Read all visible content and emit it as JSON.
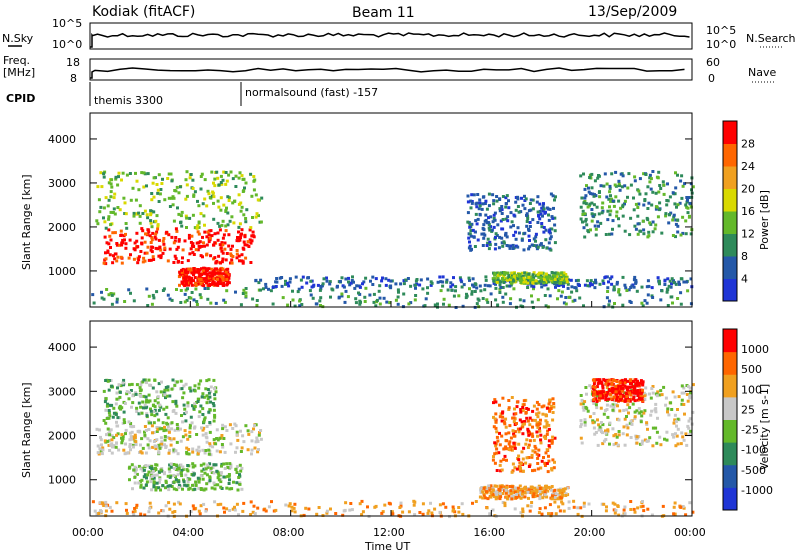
{
  "header": {
    "radar": "Kodiak (fitACF)",
    "beam": "Beam 11",
    "date": "13/Sep/2009"
  },
  "top_panel": {
    "nsky_label": "N.Sky",
    "nsearch_label": "N.Search",
    "left_ticks": [
      "10^5",
      "10^0"
    ],
    "right_ticks": [
      "10^5",
      "10^0"
    ]
  },
  "freq_panel": {
    "freq_label_1": "Freq.",
    "freq_label_2": "[MHz]",
    "nave_label": "Nave",
    "left_ticks": [
      "18",
      "8"
    ],
    "right_ticks": [
      "60",
      "0"
    ]
  },
  "cpid": {
    "label": "CPID",
    "programs": [
      {
        "name": "themis 3300",
        "start_hour": 0.0
      },
      {
        "name": "normalsound (fast) -157",
        "start_hour": 6.0
      }
    ]
  },
  "colors": {
    "power": [
      "#1f35d6",
      "#2458a8",
      "#2e8a5a",
      "#63b82a",
      "#d9d900",
      "#f0a020",
      "#ff6600",
      "#ff0000"
    ],
    "velocity": [
      "#1f35d6",
      "#2458a8",
      "#2e8a5a",
      "#63b82a",
      "#c8c8c8",
      "#f0a020",
      "#ff6600",
      "#ff0000"
    ]
  },
  "chart_data": [
    {
      "type": "heatmap",
      "name": "power",
      "ylabel": "Slant Range [km]",
      "xlabel": "",
      "ylim": [
        180,
        4590
      ],
      "xlim": [
        0,
        24
      ],
      "y_ticks": [
        "1000",
        "2000",
        "3000",
        "4000"
      ],
      "colorbar_title": "Power [dB]",
      "colorbar_ticks": [
        "4",
        "8",
        "12",
        "16",
        "20",
        "24",
        "28"
      ],
      "regions": [
        {
          "x0": 0.5,
          "x1": 6.5,
          "y0": 1200,
          "y1": 2000,
          "level": 7
        },
        {
          "x0": 3.5,
          "x1": 5.5,
          "y0": 700,
          "y1": 1100,
          "level": 7
        },
        {
          "x0": 0.2,
          "x1": 6.8,
          "y0": 2000,
          "y1": 3300,
          "level": 3
        },
        {
          "x0": 0.0,
          "x1": 24.0,
          "y0": 200,
          "y1": 650,
          "level": 2
        },
        {
          "x0": 6.5,
          "x1": 24.0,
          "y0": 650,
          "y1": 900,
          "level": 1
        },
        {
          "x0": 15.0,
          "x1": 18.5,
          "y0": 1500,
          "y1": 2800,
          "level": 1
        },
        {
          "x0": 19.5,
          "x1": 24.0,
          "y0": 1800,
          "y1": 3300,
          "level": 2
        },
        {
          "x0": 16.0,
          "x1": 19.0,
          "y0": 750,
          "y1": 1000,
          "level": 3
        }
      ]
    },
    {
      "type": "heatmap",
      "name": "velocity",
      "ylabel": "Slant Range [km]",
      "xlabel": "Time UT",
      "ylim": [
        180,
        4590
      ],
      "xlim": [
        0,
        24
      ],
      "y_ticks": [
        "1000",
        "2000",
        "3000",
        "4000"
      ],
      "x_ticks": [
        "00:00",
        "04:00",
        "08:00",
        "12:00",
        "16:00",
        "20:00",
        "00:00"
      ],
      "colorbar_title": "Velocity [m s-1]",
      "colorbar_ticks": [
        "1000",
        "500",
        "100",
        "25",
        "-25",
        "-100",
        "-500",
        "-1000"
      ],
      "regions": [
        {
          "x0": 0.2,
          "x1": 6.8,
          "y0": 1600,
          "y1": 2300,
          "level": 4
        },
        {
          "x0": 1.5,
          "x1": 6.0,
          "y0": 800,
          "y1": 1400,
          "level": 3
        },
        {
          "x0": 0.5,
          "x1": 5.0,
          "y0": 2300,
          "y1": 3300,
          "level": 3
        },
        {
          "x0": 0.0,
          "x1": 24.0,
          "y0": 200,
          "y1": 550,
          "level": 5
        },
        {
          "x0": 15.5,
          "x1": 19.0,
          "y0": 600,
          "y1": 900,
          "level": 5
        },
        {
          "x0": 19.5,
          "x1": 24.0,
          "y0": 1800,
          "y1": 3200,
          "level": 4
        },
        {
          "x0": 16.0,
          "x1": 18.5,
          "y0": 1200,
          "y1": 2900,
          "level": 6
        },
        {
          "x0": 20.0,
          "x1": 22.0,
          "y0": 2800,
          "y1": 3300,
          "level": 7
        }
      ]
    }
  ]
}
